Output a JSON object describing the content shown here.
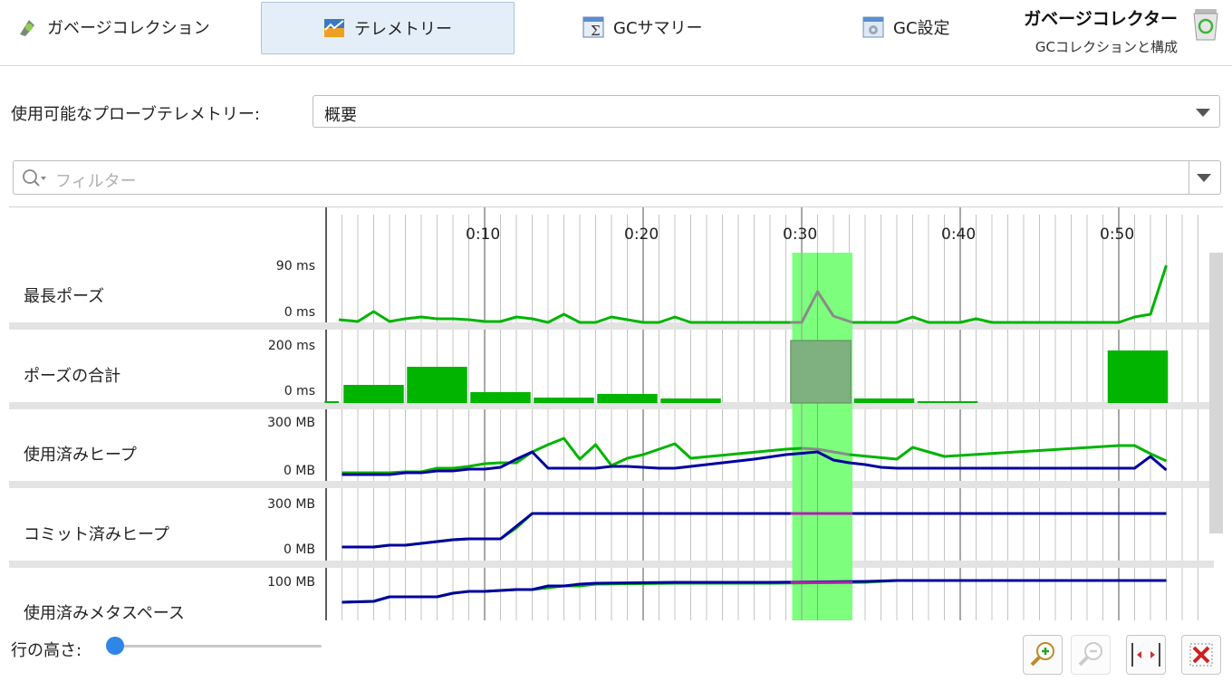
{
  "tabs": [
    {
      "label": "ガベージコレクション",
      "icon": "gc-icon"
    },
    {
      "label": "テレメトリー",
      "icon": "telemetry-icon",
      "active": true
    },
    {
      "label": "GCサマリー",
      "icon": "summary-icon"
    },
    {
      "label": "GC設定",
      "icon": "settings-icon"
    }
  ],
  "app": {
    "title": "ガベージコレクター",
    "subtitle": "GCコレクションと構成"
  },
  "probe": {
    "label": "使用可能なプローブテレメトリー:",
    "selected": "概要"
  },
  "filter": {
    "placeholder": "フィルター"
  },
  "timeline": {
    "ticks": [
      "0:10",
      "0:20",
      "0:30",
      "0:40",
      "0:50"
    ],
    "selection_seconds": [
      29.4,
      33.2
    ]
  },
  "rows": [
    {
      "label": "最長ポーズ",
      "ymax": "90 ms",
      "ymin": "0 ms"
    },
    {
      "label": "ポーズの合計",
      "ymax": "200 ms",
      "ymin": "0 ms"
    },
    {
      "label": "使用済みヒープ",
      "ymax": "300 MB",
      "ymin": "0 MB"
    },
    {
      "label": "コミット済みヒープ",
      "ymax": "300 MB",
      "ymin": "0 MB"
    },
    {
      "label": "使用済みメタスペース",
      "ymax": "100 MB",
      "ymin": ""
    }
  ],
  "row_height": {
    "label": "行の高さ:",
    "value": 0
  },
  "toolbar": {
    "buttons": [
      "zoom-in",
      "zoom-out",
      "fit",
      "close"
    ]
  },
  "colors": {
    "green": "#00b400",
    "blue": "#0000a0",
    "selection": "#7dff7d"
  }
}
